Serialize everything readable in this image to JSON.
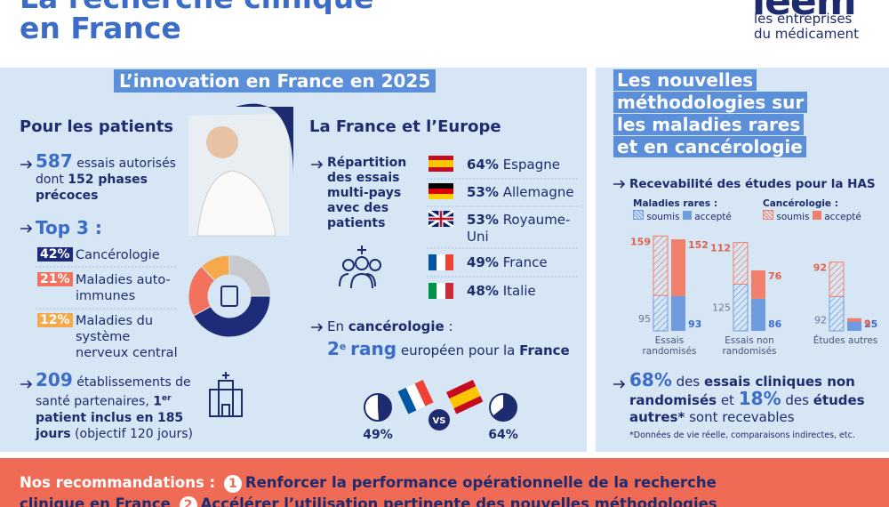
{
  "header": {
    "title_line1": "La recherche clinique",
    "title_line2": "en France",
    "logo": "leem",
    "logo_sub1": "les entreprises",
    "logo_sub2": "du médicament"
  },
  "innovation": {
    "banner": "L’innovation en France en 2025",
    "patients": {
      "heading": "Pour les patients",
      "trials_number": 587,
      "trials_text": "essais autorisés",
      "trials_dont": "dont",
      "early_phases": "152 phases précoces",
      "top3_heading": "Top 3 :",
      "top3": [
        {
          "value": 42,
          "label": "42%",
          "name": "Cancérologie",
          "color": "#1e2b78"
        },
        {
          "value": 21,
          "label": "21%",
          "name": "Maladies auto-immunes",
          "color": "#f2725d"
        },
        {
          "value": 12,
          "label": "12%",
          "name": "Maladies du système nerveux central",
          "color": "#f6a94b"
        }
      ],
      "sites_number": 209,
      "sites_text": "établissements de santé partenaires,",
      "first_num": "1",
      "first_sup": "er",
      "first_text": "patient inclus en",
      "first_days": "185 jours",
      "first_goal": "(objectif 120 jours)"
    },
    "europe": {
      "heading": "La France et l’Europe",
      "split_label": "Répartition des essais multi-pays avec des patients",
      "countries": [
        {
          "percent": "64%",
          "country": "Espagne"
        },
        {
          "percent": "53%",
          "country": "Allemagne"
        },
        {
          "percent": "53%",
          "country": "Royaume-Uni"
        },
        {
          "percent": "49%",
          "country": "France"
        },
        {
          "percent": "48%",
          "country": "Italie"
        }
      ],
      "cancer_prefix": "En",
      "cancer_word": "cancérologie",
      "cancer_colon": ":",
      "rank_num": "2",
      "rank_sup": "e",
      "rank_word": "rang",
      "rank_text": "européen pour la",
      "rank_country": "France",
      "compare": [
        {
          "value": 49,
          "label": "49%"
        },
        {
          "value": 64,
          "label": "64%"
        }
      ],
      "vs": "VS"
    }
  },
  "methods": {
    "title_lines": [
      "Les nouvelles",
      "méthodologies sur",
      "les maladies rares",
      "et en cancérologie"
    ],
    "chart_heading": "Recevabilité des études pour la HAS",
    "legend_rare": "Maladies rares :",
    "legend_cancer": "Cancérologie :",
    "legend_submitted": "soumis",
    "legend_accepted": "accepté",
    "groups": [
      {
        "label": "Essais randomisés",
        "rare_submitted": 95,
        "rare_accepted": 93,
        "cancer_submitted": 159,
        "cancer_accepted": 152
      },
      {
        "label": "Essais non randomisés",
        "rare_submitted": 125,
        "rare_accepted": 86,
        "cancer_submitted": 112,
        "cancer_accepted": 76
      },
      {
        "label": "Études autres",
        "rare_submitted": 92,
        "rare_accepted": 25,
        "cancer_submitted": 92,
        "cancer_accepted": 9
      }
    ],
    "summary": {
      "p1": "68%",
      "t1": "des",
      "b1": "essais cliniques non randomisés",
      "t2": "et",
      "p2": "18%",
      "t3": "des",
      "b2": "études autres*",
      "t4": "sont recevables"
    },
    "footnote": "*Données de vie réelle, comparaisons indirectes, etc."
  },
  "recommendations": {
    "heading": "Nos recommandations :",
    "items": [
      {
        "number": "1",
        "text": "Renforcer la performance opérationnelle de la recherche clinique en France"
      },
      {
        "number": "2",
        "text": "Accélérer l’utilisation pertinente des nouvelles méthodologies"
      }
    ]
  }
}
